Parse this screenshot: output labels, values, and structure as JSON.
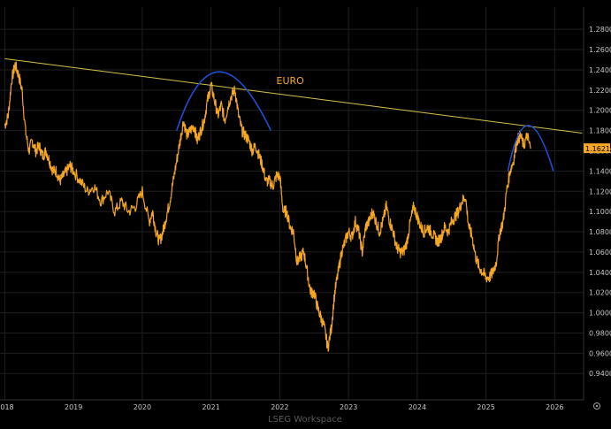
{
  "footer": {
    "watermark": "LSEG Workspace"
  },
  "colors": {
    "background": "#000000",
    "grid": "#1f1f1f",
    "price": "#f5a623",
    "trendline": "#d6c24a",
    "arc": "#1f4fd8",
    "label": "#f5a623",
    "axis_text": "#c8c8c8",
    "last_price_badge": "#f5a623"
  },
  "chart_data": {
    "type": "line",
    "title": "",
    "xlabel": "",
    "ylabel": "",
    "annotation": "EURO",
    "last_price_label": "1.1621",
    "last_price": 1.1621,
    "xlim": [
      2017.93,
      2026.42
    ],
    "ylim": [
      0.914,
      1.302
    ],
    "grid": true,
    "x_ticks": [
      "2018",
      "2019",
      "2020",
      "2021",
      "2022",
      "2023",
      "2024",
      "2025",
      "2026"
    ],
    "y_ticks": [
      "1.2800",
      "1.2600",
      "1.2400",
      "1.2200",
      "1.2000",
      "1.1800",
      "1.1600",
      "1.1400",
      "1.1200",
      "1.1000",
      "1.0800",
      "1.0600",
      "1.0400",
      "1.0200",
      "1.0000",
      "0.9800",
      "0.9600",
      "0.9400"
    ],
    "series": [
      {
        "type": "line",
        "x": [
          2018.0,
          2018.05,
          2018.1,
          2018.15,
          2018.2,
          2018.25,
          2018.3,
          2018.35,
          2018.4,
          2018.45,
          2018.5,
          2018.55,
          2018.6,
          2018.65,
          2018.7,
          2018.75,
          2018.8,
          2018.85,
          2018.9,
          2018.95,
          2019.0,
          2019.1,
          2019.2,
          2019.3,
          2019.4,
          2019.5,
          2019.6,
          2019.7,
          2019.8,
          2019.9,
          2020.0,
          2020.1,
          2020.15,
          2020.2,
          2020.25,
          2020.3,
          2020.35,
          2020.4,
          2020.45,
          2020.5,
          2020.55,
          2020.6,
          2020.65,
          2020.7,
          2020.75,
          2020.8,
          2020.85,
          2020.9,
          2020.95,
          2021.0,
          2021.05,
          2021.1,
          2021.15,
          2021.2,
          2021.25,
          2021.3,
          2021.35,
          2021.4,
          2021.45,
          2021.5,
          2021.55,
          2021.6,
          2021.65,
          2021.7,
          2021.75,
          2021.8,
          2021.85,
          2021.9,
          2021.95,
          2022.0,
          2022.05,
          2022.1,
          2022.15,
          2022.2,
          2022.25,
          2022.3,
          2022.35,
          2022.4,
          2022.45,
          2022.5,
          2022.55,
          2022.6,
          2022.65,
          2022.7,
          2022.75,
          2022.8,
          2022.85,
          2022.9,
          2022.95,
          2023.0,
          2023.05,
          2023.1,
          2023.15,
          2023.2,
          2023.25,
          2023.3,
          2023.35,
          2023.4,
          2023.45,
          2023.5,
          2023.55,
          2023.6,
          2023.65,
          2023.7,
          2023.75,
          2023.8,
          2023.85,
          2023.9,
          2023.95,
          2024.0,
          2024.05,
          2024.1,
          2024.15,
          2024.2,
          2024.25,
          2024.3,
          2024.35,
          2024.4,
          2024.45,
          2024.5,
          2024.55,
          2024.6,
          2024.65,
          2024.7,
          2024.75,
          2024.8,
          2024.85,
          2024.9,
          2024.95,
          2025.0,
          2025.05,
          2025.1,
          2025.15,
          2025.2,
          2025.25,
          2025.3,
          2025.35,
          2025.4,
          2025.45,
          2025.5,
          2025.55,
          2025.6,
          2025.65
        ],
        "y": [
          1.185,
          1.195,
          1.23,
          1.245,
          1.235,
          1.22,
          1.18,
          1.16,
          1.17,
          1.16,
          1.165,
          1.155,
          1.16,
          1.15,
          1.14,
          1.14,
          1.13,
          1.135,
          1.14,
          1.145,
          1.14,
          1.13,
          1.12,
          1.125,
          1.11,
          1.12,
          1.1,
          1.11,
          1.1,
          1.105,
          1.12,
          1.09,
          1.1,
          1.08,
          1.07,
          1.08,
          1.095,
          1.11,
          1.13,
          1.15,
          1.17,
          1.19,
          1.175,
          1.18,
          1.185,
          1.17,
          1.18,
          1.19,
          1.21,
          1.225,
          1.21,
          1.195,
          1.205,
          1.19,
          1.205,
          1.215,
          1.22,
          1.195,
          1.18,
          1.175,
          1.17,
          1.16,
          1.165,
          1.155,
          1.145,
          1.13,
          1.13,
          1.125,
          1.135,
          1.135,
          1.1,
          1.1,
          1.085,
          1.08,
          1.05,
          1.055,
          1.06,
          1.04,
          1.02,
          1.02,
          1.005,
          0.995,
          0.985,
          0.965,
          0.985,
          1.02,
          1.04,
          1.06,
          1.07,
          1.08,
          1.075,
          1.09,
          1.08,
          1.06,
          1.085,
          1.09,
          1.1,
          1.09,
          1.08,
          1.09,
          1.105,
          1.09,
          1.08,
          1.065,
          1.06,
          1.06,
          1.07,
          1.09,
          1.105,
          1.095,
          1.085,
          1.08,
          1.085,
          1.08,
          1.075,
          1.07,
          1.075,
          1.085,
          1.08,
          1.09,
          1.095,
          1.1,
          1.11,
          1.115,
          1.085,
          1.075,
          1.055,
          1.045,
          1.04,
          1.035,
          1.035,
          1.04,
          1.05,
          1.08,
          1.09,
          1.12,
          1.14,
          1.15,
          1.17,
          1.175,
          1.165,
          1.175,
          1.162
        ]
      }
    ],
    "overlays": {
      "trendline": {
        "x": [
          2018.0,
          2026.4
        ],
        "y": [
          1.251,
          1.1775
        ]
      },
      "arcs": [
        {
          "x0": 2020.5,
          "x1": 2021.87,
          "peak_x": 2021.06,
          "peak_y": 1.238,
          "end_y": 1.18
        },
        {
          "x0": 2025.32,
          "x1": 2025.98,
          "peak_x": 2025.58,
          "peak_y": 1.185,
          "end_y": 1.14
        }
      ],
      "annotation_at": {
        "x": 2021.95,
        "y": 1.226
      }
    }
  }
}
